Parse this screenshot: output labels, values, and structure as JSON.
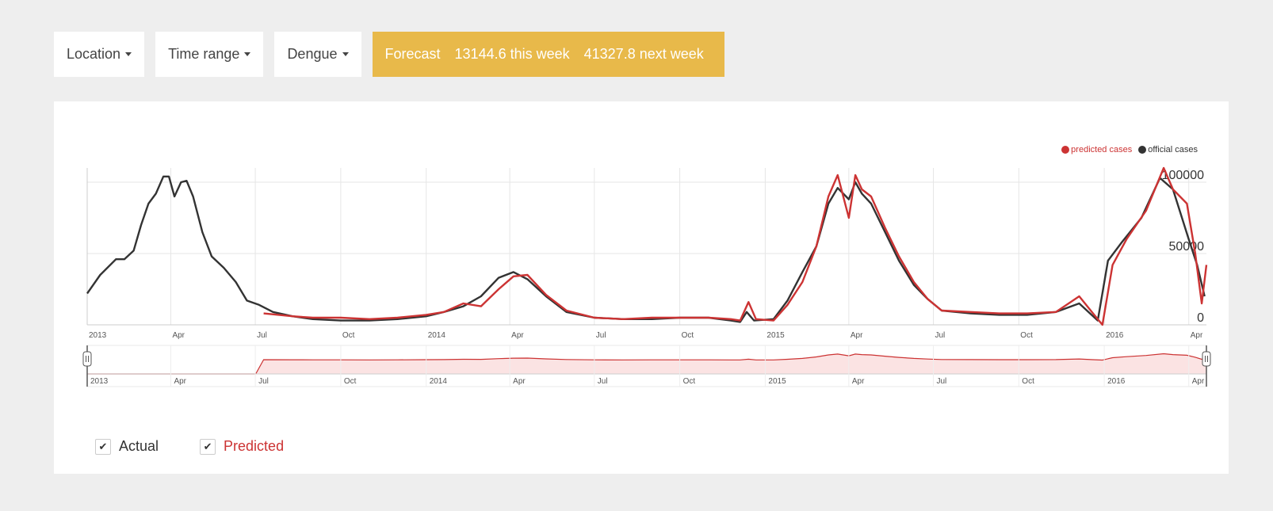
{
  "toolbar": {
    "location_label": "Location",
    "time_range_label": "Time range",
    "disease_label": "Dengue",
    "forecast": {
      "label": "Forecast",
      "this_week": "13144.6 this week",
      "next_week": "41327.8 next week",
      "color": "#e8b94a"
    }
  },
  "legend": {
    "predicted": "predicted cases",
    "official": "official cases"
  },
  "colors": {
    "predicted": "#cc3333",
    "official": "#333333",
    "navigator_fill": "#fbe3e3"
  },
  "chart_data": {
    "type": "line",
    "x_unit": "week",
    "x_range": [
      "2013-01-01",
      "2016-04-20"
    ],
    "ylim": [
      0,
      110000
    ],
    "y_ticks": [
      0,
      50000,
      100000
    ],
    "y_tick_labels": [
      "0",
      "50000",
      "100000"
    ],
    "grid": true,
    "legend_position": "top-right",
    "x_ticks": [
      {
        "date": "2013-01-01",
        "label": "2013"
      },
      {
        "date": "2013-04-01",
        "label": "Apr"
      },
      {
        "date": "2013-07-01",
        "label": "Jul"
      },
      {
        "date": "2013-10-01",
        "label": "Oct"
      },
      {
        "date": "2014-01-01",
        "label": "2014"
      },
      {
        "date": "2014-04-01",
        "label": "Apr"
      },
      {
        "date": "2014-07-01",
        "label": "Jul"
      },
      {
        "date": "2014-10-01",
        "label": "Oct"
      },
      {
        "date": "2015-01-01",
        "label": "2015"
      },
      {
        "date": "2015-04-01",
        "label": "Apr"
      },
      {
        "date": "2015-07-01",
        "label": "Jul"
      },
      {
        "date": "2015-10-01",
        "label": "Oct"
      },
      {
        "date": "2016-01-01",
        "label": "2016"
      },
      {
        "date": "2016-04-01",
        "label": "Apr"
      }
    ],
    "series": [
      {
        "name": "official cases",
        "color": "#333333",
        "points": [
          [
            "2013-01-01",
            22000
          ],
          [
            "2013-01-15",
            35000
          ],
          [
            "2013-02-01",
            46000
          ],
          [
            "2013-02-10",
            46000
          ],
          [
            "2013-02-20",
            52000
          ],
          [
            "2013-02-28",
            70000
          ],
          [
            "2013-03-08",
            85000
          ],
          [
            "2013-03-16",
            92000
          ],
          [
            "2013-03-24",
            104000
          ],
          [
            "2013-03-30",
            104000
          ],
          [
            "2013-04-05",
            90000
          ],
          [
            "2013-04-12",
            100000
          ],
          [
            "2013-04-18",
            101000
          ],
          [
            "2013-04-25",
            90000
          ],
          [
            "2013-05-05",
            65000
          ],
          [
            "2013-05-15",
            48000
          ],
          [
            "2013-05-28",
            40000
          ],
          [
            "2013-06-10",
            30000
          ],
          [
            "2013-06-22",
            17000
          ],
          [
            "2013-07-05",
            14000
          ],
          [
            "2013-07-20",
            9000
          ],
          [
            "2013-08-10",
            6000
          ],
          [
            "2013-09-01",
            4000
          ],
          [
            "2013-10-01",
            3000
          ],
          [
            "2013-11-01",
            3000
          ],
          [
            "2013-12-01",
            4000
          ],
          [
            "2014-01-01",
            6000
          ],
          [
            "2014-01-20",
            9000
          ],
          [
            "2014-02-10",
            13000
          ],
          [
            "2014-03-01",
            20000
          ],
          [
            "2014-03-20",
            33000
          ],
          [
            "2014-04-05",
            37000
          ],
          [
            "2014-04-20",
            32000
          ],
          [
            "2014-05-10",
            20000
          ],
          [
            "2014-06-01",
            9000
          ],
          [
            "2014-07-01",
            5000
          ],
          [
            "2014-08-01",
            4000
          ],
          [
            "2014-09-01",
            4000
          ],
          [
            "2014-10-01",
            5000
          ],
          [
            "2014-11-01",
            5000
          ],
          [
            "2014-11-25",
            3000
          ],
          [
            "2014-12-05",
            2000
          ],
          [
            "2014-12-12",
            9000
          ],
          [
            "2014-12-20",
            3000
          ],
          [
            "2015-01-10",
            4000
          ],
          [
            "2015-01-25",
            17000
          ],
          [
            "2015-02-10",
            37000
          ],
          [
            "2015-02-25",
            55000
          ],
          [
            "2015-03-10",
            85000
          ],
          [
            "2015-03-20",
            96000
          ],
          [
            "2015-04-01",
            88000
          ],
          [
            "2015-04-08",
            100000
          ],
          [
            "2015-04-15",
            92000
          ],
          [
            "2015-04-25",
            85000
          ],
          [
            "2015-05-10",
            65000
          ],
          [
            "2015-05-25",
            45000
          ],
          [
            "2015-06-10",
            28000
          ],
          [
            "2015-06-25",
            18000
          ],
          [
            "2015-07-10",
            10000
          ],
          [
            "2015-08-10",
            8000
          ],
          [
            "2015-09-10",
            7000
          ],
          [
            "2015-10-10",
            7000
          ],
          [
            "2015-11-10",
            9000
          ],
          [
            "2015-12-05",
            15000
          ],
          [
            "2015-12-25",
            3000
          ],
          [
            "2016-01-05",
            45000
          ],
          [
            "2016-01-20",
            58000
          ],
          [
            "2016-02-10",
            75000
          ],
          [
            "2016-03-01",
            103000
          ],
          [
            "2016-03-15",
            95000
          ],
          [
            "2016-04-01",
            60000
          ],
          [
            "2016-04-10",
            42000
          ],
          [
            "2016-04-18",
            20000
          ]
        ]
      },
      {
        "name": "predicted cases",
        "color": "#cc3333",
        "points": [
          [
            "2013-07-10",
            8000
          ],
          [
            "2013-08-10",
            6000
          ],
          [
            "2013-09-01",
            5000
          ],
          [
            "2013-10-01",
            5000
          ],
          [
            "2013-11-01",
            4000
          ],
          [
            "2013-12-01",
            5000
          ],
          [
            "2014-01-01",
            7000
          ],
          [
            "2014-01-20",
            9000
          ],
          [
            "2014-02-10",
            15000
          ],
          [
            "2014-03-01",
            13000
          ],
          [
            "2014-03-20",
            25000
          ],
          [
            "2014-04-05",
            34000
          ],
          [
            "2014-04-20",
            35000
          ],
          [
            "2014-05-10",
            21000
          ],
          [
            "2014-06-01",
            10000
          ],
          [
            "2014-07-01",
            5000
          ],
          [
            "2014-08-01",
            4000
          ],
          [
            "2014-09-01",
            5000
          ],
          [
            "2014-10-01",
            5000
          ],
          [
            "2014-11-01",
            5000
          ],
          [
            "2014-11-25",
            4000
          ],
          [
            "2014-12-05",
            3000
          ],
          [
            "2014-12-14",
            16000
          ],
          [
            "2014-12-22",
            4000
          ],
          [
            "2015-01-10",
            3000
          ],
          [
            "2015-01-25",
            14000
          ],
          [
            "2015-02-10",
            30000
          ],
          [
            "2015-02-25",
            55000
          ],
          [
            "2015-03-10",
            90000
          ],
          [
            "2015-03-20",
            105000
          ],
          [
            "2015-04-01",
            75000
          ],
          [
            "2015-04-08",
            105000
          ],
          [
            "2015-04-15",
            95000
          ],
          [
            "2015-04-25",
            90000
          ],
          [
            "2015-05-10",
            68000
          ],
          [
            "2015-05-25",
            48000
          ],
          [
            "2015-06-10",
            30000
          ],
          [
            "2015-06-25",
            18000
          ],
          [
            "2015-07-10",
            10000
          ],
          [
            "2015-08-10",
            9000
          ],
          [
            "2015-09-10",
            8000
          ],
          [
            "2015-10-10",
            8000
          ],
          [
            "2015-11-10",
            9000
          ],
          [
            "2015-12-05",
            20000
          ],
          [
            "2015-12-20",
            8000
          ],
          [
            "2015-12-30",
            0
          ],
          [
            "2016-01-10",
            42000
          ],
          [
            "2016-01-25",
            60000
          ],
          [
            "2016-02-15",
            80000
          ],
          [
            "2016-03-05",
            110000
          ],
          [
            "2016-03-15",
            95000
          ],
          [
            "2016-03-30",
            85000
          ],
          [
            "2016-04-08",
            50000
          ],
          [
            "2016-04-15",
            15000
          ],
          [
            "2016-04-20",
            42000
          ]
        ]
      }
    ]
  },
  "navigator": {
    "x_ticks": [
      "2013",
      "Apr",
      "Jul",
      "Oct",
      "2014",
      "Apr",
      "Jul",
      "Oct",
      "2015",
      "Apr",
      "Jul",
      "Oct",
      "2016",
      "Apr"
    ]
  },
  "filters": {
    "actual_label": "Actual",
    "predicted_label": "Predicted",
    "actual_checked": true,
    "predicted_checked": true
  }
}
